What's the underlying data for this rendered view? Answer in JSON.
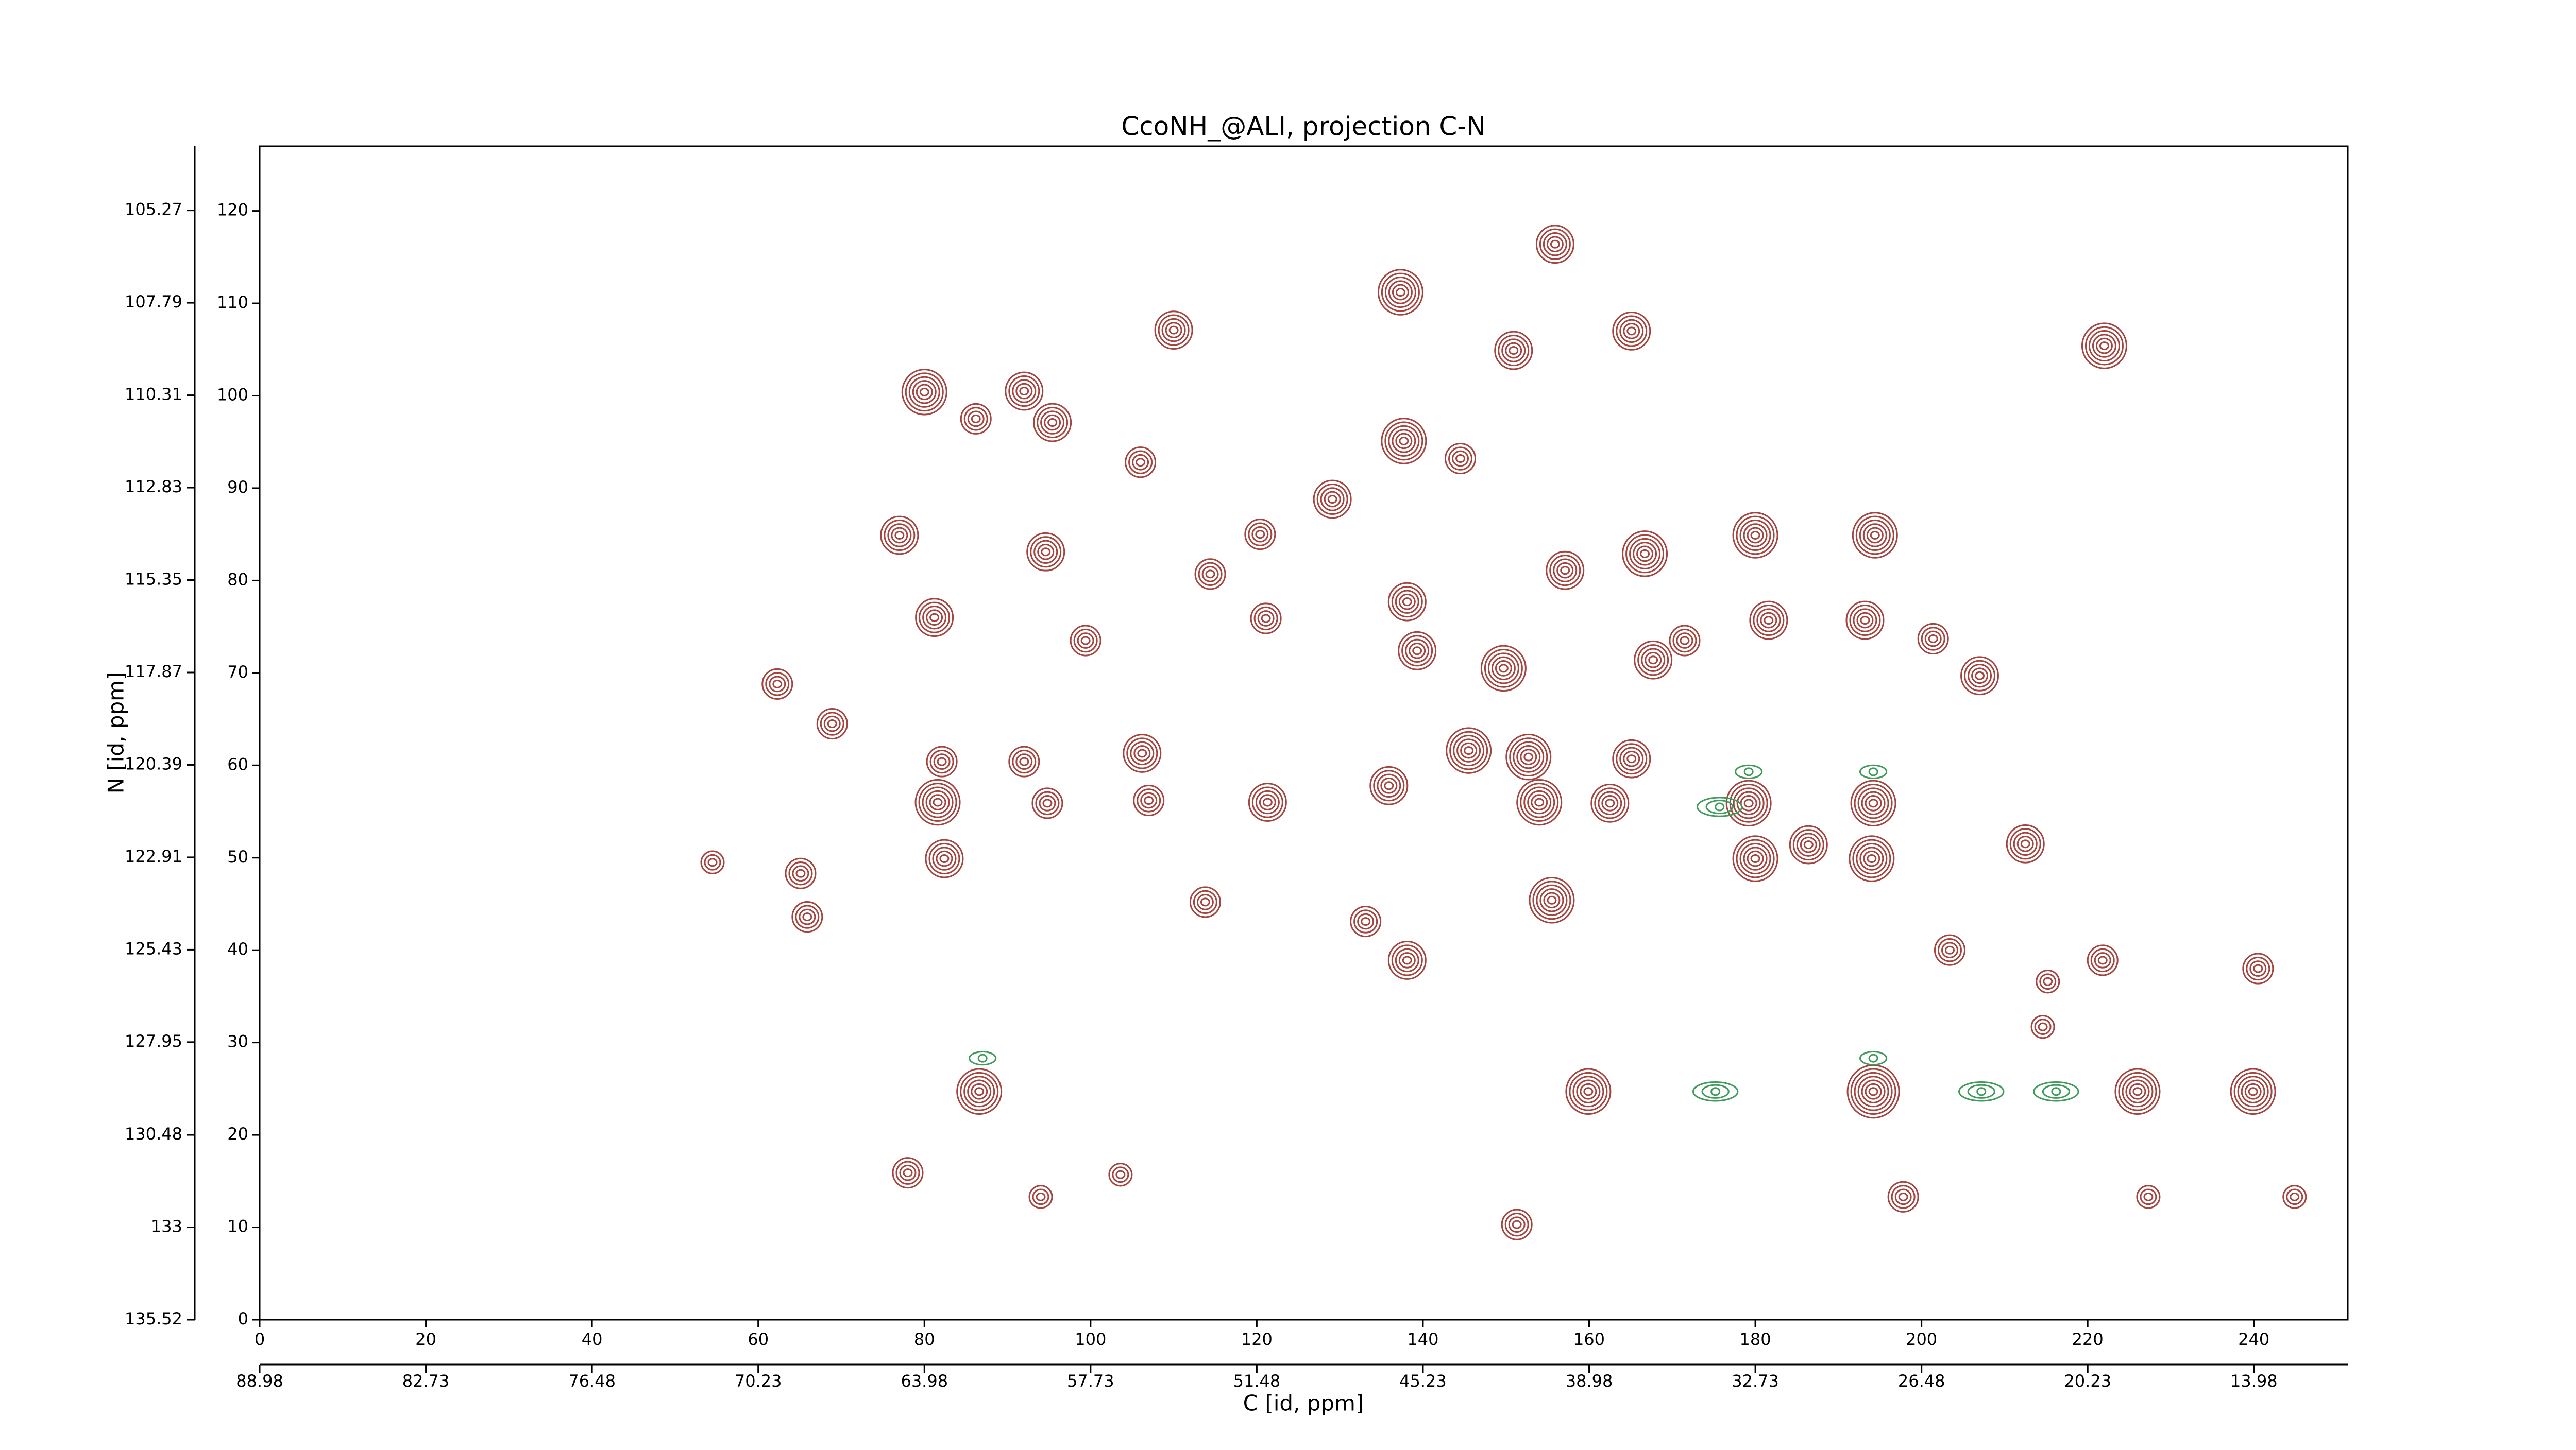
{
  "chart_data": {
    "type": "contour",
    "title": "CcoNH_@ALI, projection C-N",
    "xlabel": "C [id, ppm]",
    "ylabel": "N [id, ppm]",
    "xlim": [
      0,
      251.3
    ],
    "ylim": [
      0,
      127
    ],
    "xticks": [
      0,
      20,
      40,
      60,
      80,
      100,
      120,
      140,
      160,
      180,
      200,
      220,
      240
    ],
    "yticks": [
      0,
      10,
      20,
      30,
      40,
      50,
      60,
      70,
      80,
      90,
      100,
      110,
      120
    ],
    "x2lim": [
      88.98,
      10.45
    ],
    "x2ticks": [
      88.98,
      82.73,
      76.48,
      70.23,
      63.98,
      57.73,
      51.48,
      45.23,
      38.98,
      32.73,
      26.48,
      20.23,
      13.98
    ],
    "y2lim": [
      135.52,
      103.52
    ],
    "y2ticks": [
      135.52,
      133.0,
      130.48,
      127.95,
      125.43,
      122.91,
      120.39,
      117.87,
      115.35,
      112.83,
      110.31,
      107.79,
      105.27
    ],
    "series": [
      {
        "color": "#a3443f",
        "x": [
          155.9,
          137.3,
          110.0,
          150.9,
          165.1,
          222.0,
          80.0,
          92.0,
          95.4,
          86.2,
          137.7,
          106.0,
          144.5,
          129.1,
          77.0,
          94.6,
          120.4,
          166.7,
          180.0,
          194.4,
          157.1,
          114.4,
          138.1,
          81.2,
          121.1,
          181.6,
          193.2,
          139.3,
          171.5,
          167.7,
          99.4,
          201.4,
          149.7,
          207.0,
          68.9,
          62.3,
          92.0,
          82.1,
          106.2,
          145.5,
          152.7,
          165.1,
          135.9,
          81.6,
          94.8,
          107.0,
          121.3,
          154.0,
          162.5,
          179.2,
          194.2,
          186.4,
          180.0,
          194.0,
          82.4,
          212.5,
          65.1,
          54.5,
          65.9,
          155.5,
          133.1,
          138.1,
          113.8,
          203.4,
          215.2,
          214.6,
          221.8,
          240.5,
          86.6,
          159.9,
          194.2,
          226.0,
          239.9,
          78.0,
          94.0,
          227.3,
          197.8,
          151.3,
          103.6,
          244.9
        ],
        "y": [
          116.4,
          111.2,
          107.1,
          104.9,
          107.0,
          105.4,
          100.4,
          100.5,
          97.1,
          97.5,
          95.1,
          92.8,
          93.2,
          88.8,
          84.9,
          83.1,
          85.0,
          82.9,
          84.9,
          84.9,
          81.1,
          80.7,
          77.7,
          76.0,
          75.9,
          75.7,
          75.7,
          72.4,
          73.5,
          71.4,
          73.5,
          73.7,
          70.5,
          69.7,
          64.5,
          68.8,
          60.4,
          60.4,
          61.3,
          61.6,
          60.9,
          60.7,
          57.8,
          56.0,
          55.9,
          56.2,
          56.0,
          56.0,
          55.9,
          55.9,
          55.9,
          51.4,
          49.9,
          49.9,
          49.9,
          51.5,
          48.3,
          49.5,
          43.6,
          45.4,
          43.1,
          38.9,
          45.2,
          40.0,
          36.6,
          31.7,
          38.9,
          38.0,
          24.7,
          24.7,
          24.7,
          24.7,
          24.7,
          15.9,
          13.3,
          13.3,
          13.3,
          10.3,
          15.7,
          13.3
        ],
        "levels": [
          5,
          6,
          5,
          5,
          5,
          6,
          6,
          5,
          5,
          4,
          6,
          4,
          4,
          5,
          5,
          5,
          4,
          6,
          6,
          6,
          5,
          4,
          5,
          5,
          4,
          5,
          5,
          5,
          4,
          5,
          4,
          4,
          6,
          5,
          4,
          4,
          4,
          4,
          5,
          6,
          6,
          5,
          5,
          6,
          4,
          4,
          5,
          6,
          5,
          6,
          6,
          5,
          6,
          6,
          5,
          5,
          4,
          3,
          4,
          6,
          4,
          5,
          4,
          4,
          3,
          3,
          4,
          4,
          6,
          6,
          7,
          6,
          6,
          4,
          3,
          3,
          4,
          4,
          3,
          3
        ]
      },
      {
        "color": "#3f9a5c",
        "x": [
          175.7,
          207.2,
          216.2,
          175.2,
          87.0,
          194.2,
          194.2,
          179.2
        ],
        "y": [
          55.5,
          24.7,
          24.7,
          24.7,
          28.3,
          28.3,
          59.3,
          59.3
        ],
        "levels": [
          3,
          3,
          3,
          3,
          2,
          2,
          2,
          2
        ]
      }
    ]
  }
}
